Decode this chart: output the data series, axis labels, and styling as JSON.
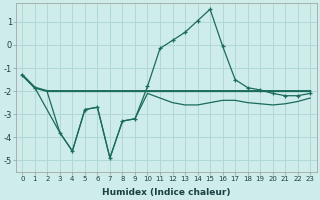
{
  "xlabel": "Humidex (Indice chaleur)",
  "background_color": "#ceecea",
  "grid_color": "#b0d8d4",
  "line_color": "#1a6b5a",
  "xlim": [
    -0.5,
    23.5
  ],
  "ylim": [
    -5.5,
    1.8
  ],
  "x_ticks": [
    0,
    1,
    2,
    3,
    4,
    5,
    6,
    7,
    8,
    9,
    10,
    11,
    12,
    13,
    14,
    15,
    16,
    17,
    18,
    19,
    20,
    21,
    22,
    23
  ],
  "yticks": [
    -5,
    -4,
    -3,
    -2,
    -1,
    0,
    1
  ],
  "line1_x": [
    0,
    1,
    2,
    3,
    4,
    5,
    6,
    7,
    8,
    9,
    10,
    11,
    12,
    13,
    14,
    15,
    16,
    17,
    18,
    19,
    20,
    21,
    22,
    23
  ],
  "line1_y": [
    -1.3,
    -1.85,
    -2.0,
    -2.0,
    -2.0,
    -2.0,
    -2.0,
    -2.0,
    -2.0,
    -2.0,
    -2.0,
    -2.0,
    -2.0,
    -2.0,
    -2.0,
    -2.0,
    -2.0,
    -2.0,
    -2.0,
    -2.0,
    -2.0,
    -2.0,
    -2.0,
    -2.0
  ],
  "line2_x": [
    0,
    1,
    3,
    4,
    5,
    6,
    7,
    8,
    9,
    10,
    11,
    12,
    13,
    14,
    15,
    16,
    17,
    18,
    19,
    20,
    21,
    22,
    23
  ],
  "line2_y": [
    -1.3,
    -1.85,
    -3.8,
    -4.6,
    -2.8,
    -2.7,
    -4.9,
    -3.3,
    -3.2,
    -1.8,
    -0.15,
    0.2,
    0.55,
    1.05,
    1.55,
    -0.05,
    -1.5,
    -1.85,
    -1.95,
    -2.1,
    -2.2,
    -2.2,
    -2.1
  ],
  "line3_x": [
    2,
    3,
    4,
    5,
    6,
    7,
    8,
    9,
    10,
    11,
    12,
    13,
    14,
    15,
    16,
    17,
    18,
    19,
    20,
    21,
    22,
    23
  ],
  "line3_y": [
    -2.05,
    -3.8,
    -4.6,
    -2.8,
    -2.7,
    -4.9,
    -3.3,
    -3.2,
    -2.1,
    -2.3,
    -2.5,
    -2.6,
    -2.6,
    -2.5,
    -2.4,
    -2.4,
    -2.5,
    -2.55,
    -2.6,
    -2.55,
    -2.45,
    -2.3
  ]
}
